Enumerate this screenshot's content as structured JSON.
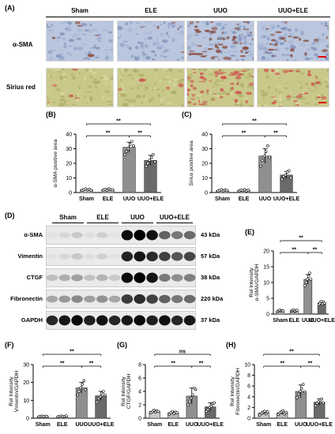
{
  "panel_labels": {
    "A": "(A)",
    "B": "(B)",
    "C": "(C)",
    "D": "(D)",
    "E": "(E)",
    "F": "(F)",
    "G": "(G)",
    "H": "(H)"
  },
  "histology": {
    "groups": [
      "Sham",
      "ELE",
      "UUO",
      "UUO+ELE"
    ],
    "stains": [
      "α-SMA",
      "Sirius red"
    ]
  },
  "western_blot": {
    "groups": [
      "Sham",
      "ELE",
      "UUO",
      "UUO+ELE"
    ],
    "proteins": [
      {
        "name": "α-SMA",
        "kda": "43 kDa",
        "band_levels": [
          0.08,
          0.08,
          0.95,
          0.55
        ]
      },
      {
        "name": "Vimentin",
        "kda": "57 kDa",
        "band_levels": [
          0.08,
          0.08,
          0.85,
          0.7
        ]
      },
      {
        "name": "CTGF",
        "kda": "38 kDa",
        "band_levels": [
          0.25,
          0.2,
          0.95,
          0.45
        ]
      },
      {
        "name": "Fibronectin",
        "kda": "220 kDa",
        "band_levels": [
          0.35,
          0.35,
          0.75,
          0.55
        ]
      },
      {
        "name": "GAPDH",
        "kda": "37 kDa",
        "band_levels": [
          0.9,
          0.9,
          0.9,
          0.9
        ]
      }
    ]
  },
  "chart_data": [
    {
      "id": "B",
      "type": "bar",
      "ylabel": "α-SMA positive area",
      "ylim": [
        0,
        40
      ],
      "yticks": [
        0,
        10,
        20,
        30,
        40
      ],
      "categories": [
        "Sham",
        "ELE",
        "UUO",
        "UUO+ELE"
      ],
      "values": [
        2,
        2,
        31,
        22
      ],
      "errors": [
        0.5,
        0.5,
        3.5,
        3.5
      ],
      "points": [
        [
          1.5,
          2,
          2.5,
          1.8,
          2.2,
          1.6
        ],
        [
          1.8,
          2.2,
          1.5,
          2.6,
          2.0,
          1.9
        ],
        [
          26,
          28,
          30,
          33,
          35,
          32
        ],
        [
          18,
          20,
          22,
          24,
          26,
          21
        ]
      ],
      "significance": [
        {
          "from": 0,
          "to": 2,
          "label": "**",
          "level": 0
        },
        {
          "from": 0,
          "to": 3,
          "label": "**",
          "level": 1
        },
        {
          "from": 2,
          "to": 3,
          "label": "**",
          "level": 0
        }
      ]
    },
    {
      "id": "C",
      "type": "bar",
      "ylabel": "Sirius positive area",
      "ylim": [
        0,
        40
      ],
      "yticks": [
        0,
        10,
        20,
        30,
        40
      ],
      "categories": [
        "Sham",
        "ELE",
        "UUO",
        "UUO+ELE"
      ],
      "values": [
        1.5,
        1.5,
        25,
        12
      ],
      "errors": [
        0.5,
        0.5,
        5,
        2.5
      ],
      "points": [
        [
          1,
          1.5,
          2,
          1.2,
          1.8,
          1.4
        ],
        [
          1.2,
          1.6,
          1.4,
          2.0,
          1.1,
          1.7
        ],
        [
          18,
          22,
          25,
          28,
          32,
          24
        ],
        [
          9,
          11,
          12,
          14,
          15,
          10
        ]
      ],
      "significance": [
        {
          "from": 0,
          "to": 2,
          "label": "**",
          "level": 0
        },
        {
          "from": 0,
          "to": 3,
          "label": "**",
          "level": 1
        },
        {
          "from": 2,
          "to": 3,
          "label": "**",
          "level": 0
        }
      ]
    },
    {
      "id": "E",
      "type": "bar",
      "ylabel": "Rel Intensity α-SMA/GAPDH",
      "ylim": [
        0,
        20
      ],
      "yticks": [
        0,
        5,
        10,
        15,
        20
      ],
      "categories": [
        "Sham",
        "ELE",
        "UUO",
        "UUO+ELE"
      ],
      "values": [
        1,
        1,
        11,
        3.5
      ],
      "errors": [
        0.2,
        0.2,
        1.5,
        0.5
      ],
      "points": [
        [
          0.8,
          1.0,
          1.2,
          0.9,
          1.1,
          1.0
        ],
        [
          0.9,
          1.1,
          1.3,
          0.8,
          1.0,
          1.2
        ],
        [
          9,
          10,
          11,
          12,
          13,
          11
        ],
        [
          3,
          3.5,
          4,
          3.2,
          3.8,
          3.4
        ]
      ],
      "significance": [
        {
          "from": 0,
          "to": 2,
          "label": "**",
          "level": 0
        },
        {
          "from": 0,
          "to": 3,
          "label": "**",
          "level": 1
        },
        {
          "from": 2,
          "to": 3,
          "label": "**",
          "level": 0
        }
      ]
    },
    {
      "id": "F",
      "type": "bar",
      "ylabel": "Rel Intensity Vimentin/GAPDH",
      "ylim": [
        0,
        30
      ],
      "yticks": [
        0,
        10,
        20,
        30
      ],
      "categories": [
        "Sham",
        "ELE",
        "UUO",
        "UUO+ELE"
      ],
      "values": [
        1,
        1,
        17,
        12.5
      ],
      "errors": [
        0.3,
        0.3,
        3,
        2.5
      ],
      "points": [
        [
          0.8,
          1.0,
          1.2,
          0.9,
          1.1,
          1.0
        ],
        [
          0.9,
          1.1,
          1.2,
          0.8,
          1.0,
          1.3
        ],
        [
          13,
          15,
          17,
          19,
          21,
          16
        ],
        [
          9,
          11,
          12,
          14,
          15,
          13
        ]
      ],
      "significance": [
        {
          "from": 0,
          "to": 2,
          "label": "**",
          "level": 0
        },
        {
          "from": 0,
          "to": 3,
          "label": "**",
          "level": 1
        },
        {
          "from": 2,
          "to": 3,
          "label": "**",
          "level": 0
        }
      ]
    },
    {
      "id": "G",
      "type": "bar",
      "ylabel": "Rel Intensity CTGF/GAPDH",
      "ylim": [
        0,
        8
      ],
      "yticks": [
        0,
        2,
        4,
        6,
        8
      ],
      "categories": [
        "Sham",
        "ELE",
        "UUO",
        "UUO+ELE"
      ],
      "values": [
        1,
        0.8,
        3.3,
        1.7
      ],
      "errors": [
        0.2,
        0.2,
        1.2,
        0.6
      ],
      "points": [
        [
          0.8,
          1.0,
          1.2,
          0.9,
          1.1,
          1.0
        ],
        [
          0.6,
          0.8,
          1.0,
          0.7,
          0.9,
          0.8
        ],
        [
          2,
          2.5,
          3,
          3.5,
          4.5,
          4.3
        ],
        [
          1,
          1.3,
          1.6,
          1.8,
          2.2,
          2.3
        ]
      ],
      "significance": [
        {
          "from": 0,
          "to": 2,
          "label": "**",
          "level": 0
        },
        {
          "from": 0,
          "to": 3,
          "label": "ns",
          "level": 1
        },
        {
          "from": 2,
          "to": 3,
          "label": "**",
          "level": 0
        }
      ]
    },
    {
      "id": "H",
      "type": "bar",
      "ylabel": "Rel Intensity Fibronectin/GAPDH",
      "ylim": [
        0,
        10
      ],
      "yticks": [
        0,
        2,
        4,
        6,
        8,
        10
      ],
      "categories": [
        "Sham",
        "ELE",
        "UUO",
        "UUO+ELE"
      ],
      "values": [
        1,
        1,
        5,
        3
      ],
      "errors": [
        0.3,
        0.3,
        1.2,
        0.6
      ],
      "points": [
        [
          0.6,
          0.9,
          1.1,
          1.3,
          0.8,
          1.2
        ],
        [
          0.7,
          1.0,
          1.2,
          1.4,
          0.8,
          1.1
        ],
        [
          3.8,
          4.5,
          5,
          5.5,
          6.3,
          4.9
        ],
        [
          2.3,
          2.8,
          3.1,
          3.4,
          3.6,
          2.9
        ]
      ],
      "significance": [
        {
          "from": 0,
          "to": 2,
          "label": "**",
          "level": 0
        },
        {
          "from": 0,
          "to": 3,
          "label": "**",
          "level": 1
        },
        {
          "from": 2,
          "to": 3,
          "label": "**",
          "level": 0
        }
      ]
    }
  ],
  "colors": {
    "bar_sham": "#c9c9c9",
    "bar_ele": "#b8b8b8",
    "bar_uuo": "#8f8f8f",
    "bar_uuoele": "#6a6a6a",
    "asma_tissue": "#b9c6de",
    "asma_stain": "#8a4a3a",
    "sirius_tissue": "#c9c88a",
    "sirius_stain": "#d05050"
  }
}
